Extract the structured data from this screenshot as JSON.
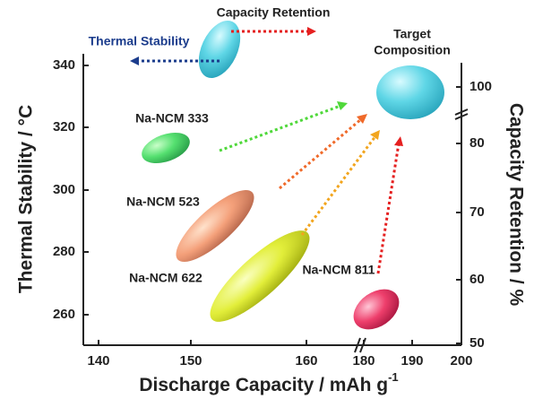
{
  "labels": {
    "capacity_retention": "Capacity Retention",
    "thermal_stability": "Thermal Stability",
    "target_line1": "Target",
    "target_line2": "Composition",
    "ncm333": "Na-NCM 333",
    "ncm523": "Na-NCM 523",
    "ncm622": "Na-NCM 622",
    "ncm811": "Na-NCM 811"
  },
  "axes": {
    "left": {
      "label": "Thermal Stability  /  °C",
      "ticks": [
        "340",
        "320",
        "300",
        "280",
        "260"
      ]
    },
    "right": {
      "label": "Capacity Retention / %",
      "ticks": [
        "100",
        "80",
        "70",
        "60",
        "50"
      ]
    },
    "bottom": {
      "label": "Discharge Capacity  /  mAh g",
      "label_sup": "-1",
      "ticks": [
        "140",
        "150",
        "160",
        "180",
        "190",
        "200"
      ]
    }
  }
}
